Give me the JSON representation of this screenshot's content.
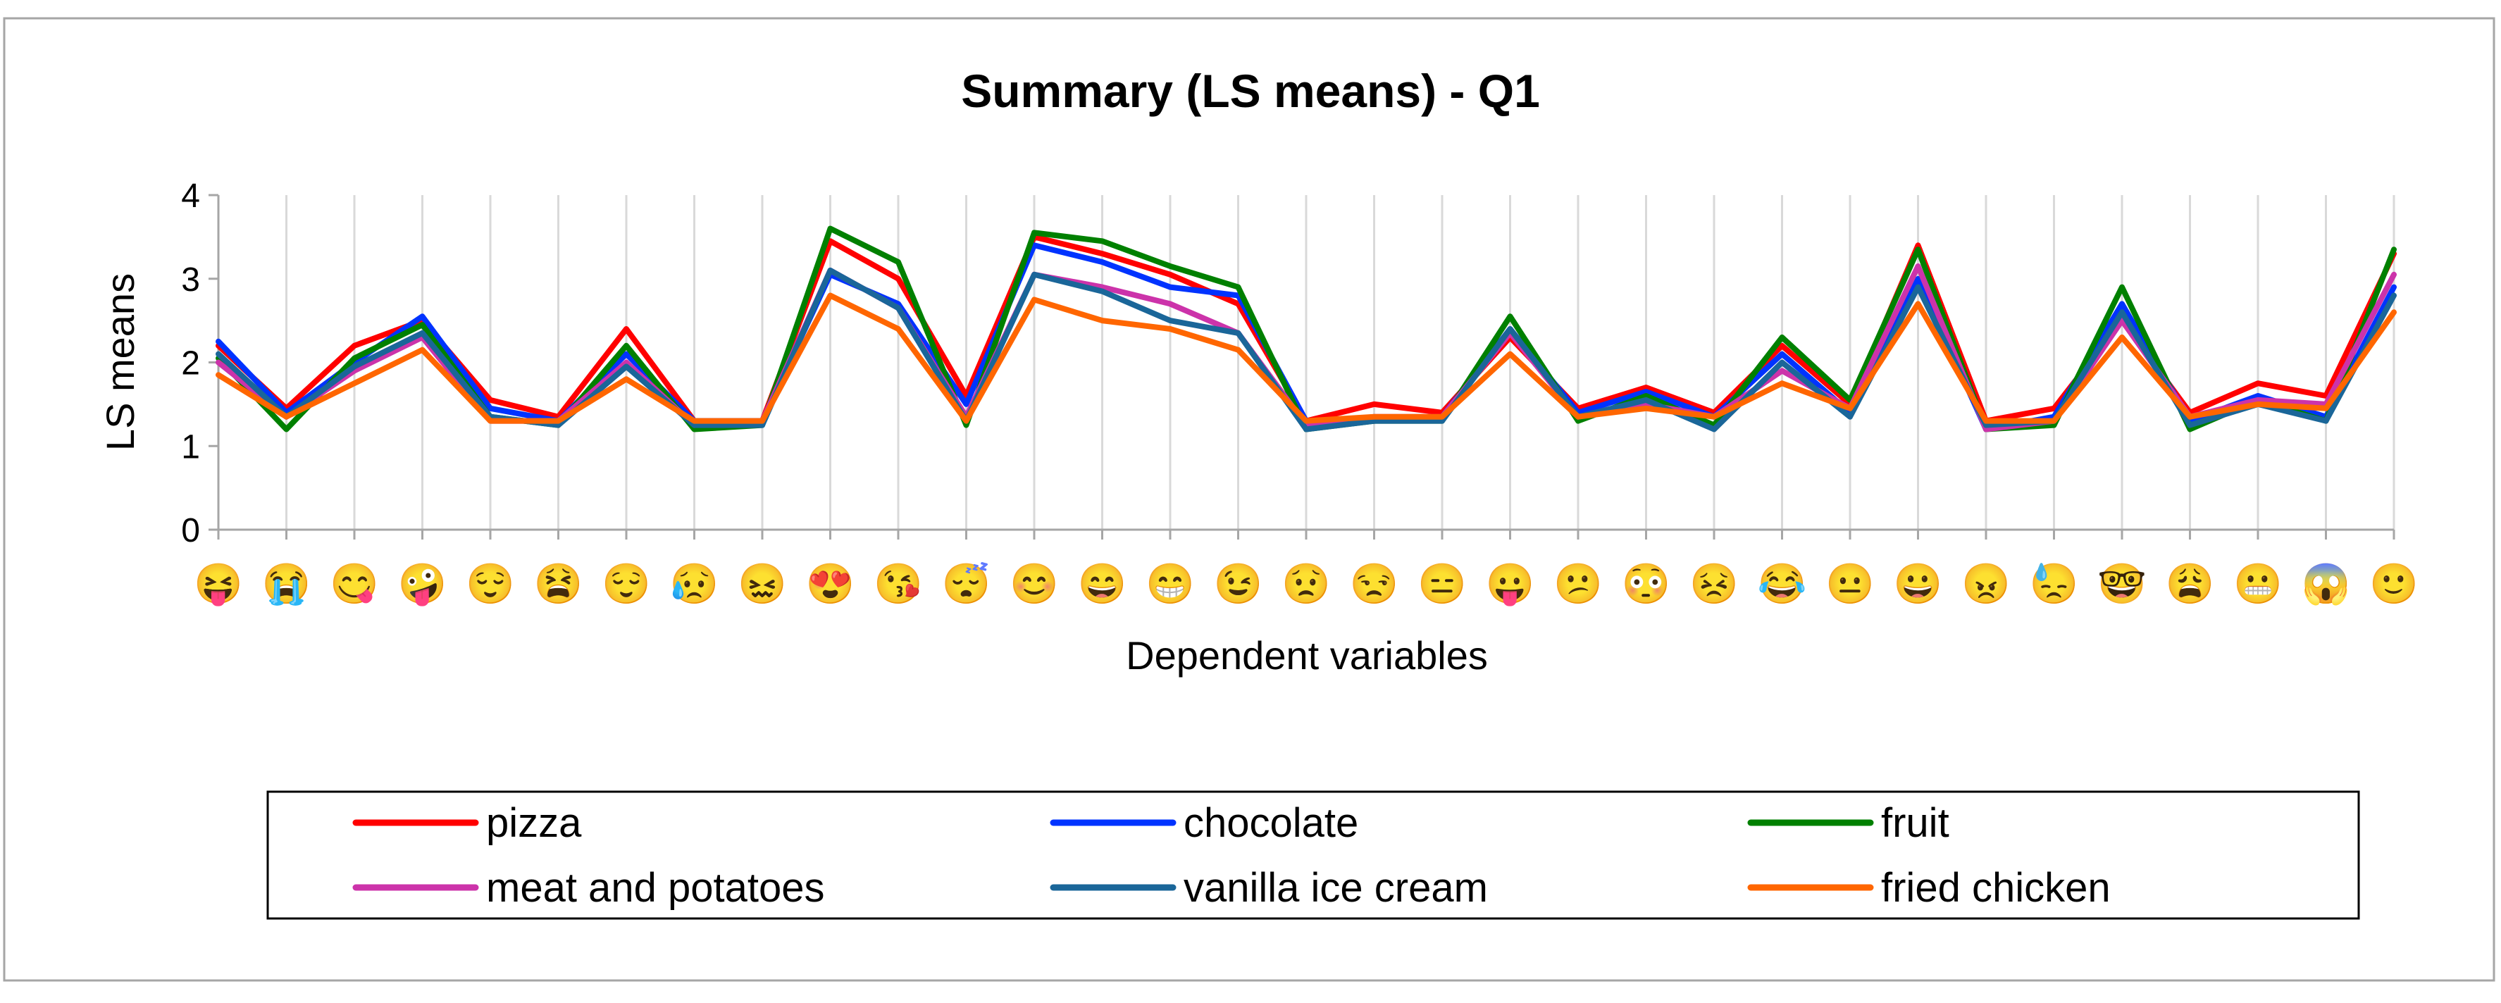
{
  "chart_data": {
    "type": "line",
    "title": "Summary (LS means) - Q1",
    "xlabel": "Dependent variables",
    "ylabel": "LS means",
    "ylim": [
      0,
      4
    ],
    "yticks": [
      "0",
      "1",
      "2",
      "3",
      "4"
    ],
    "grid": "vertical",
    "legend_position": "bottom",
    "categories": [
      "😝",
      "😭",
      "😋",
      "🤪",
      "😌",
      "😫",
      "😌",
      "😥",
      "😖",
      "😍",
      "😘",
      "😴",
      "😊",
      "😄",
      "😁",
      "😉",
      "😟",
      "😒",
      "😑",
      "😛",
      "😕",
      "😳",
      "😣",
      "😂",
      "😐",
      "😀",
      "😠",
      "😓",
      "🤓",
      "😩",
      "😬",
      "😱",
      "🙂"
    ],
    "series": [
      {
        "name": "pizza",
        "color": "#ff0000",
        "values": [
          2.2,
          1.45,
          2.2,
          2.5,
          1.55,
          1.35,
          2.4,
          1.3,
          1.3,
          3.45,
          3.0,
          1.6,
          3.5,
          3.3,
          3.05,
          2.7,
          1.3,
          1.5,
          1.4,
          2.3,
          1.45,
          1.7,
          1.4,
          2.2,
          1.5,
          3.4,
          1.3,
          1.45,
          2.5,
          1.4,
          1.75,
          1.6,
          3.3
        ]
      },
      {
        "name": "chocolate",
        "color": "#0033ff",
        "values": [
          2.25,
          1.4,
          2.0,
          2.55,
          1.45,
          1.3,
          2.1,
          1.3,
          1.3,
          3.05,
          2.7,
          1.5,
          3.4,
          3.2,
          2.9,
          2.8,
          1.3,
          1.3,
          1.35,
          2.4,
          1.4,
          1.65,
          1.35,
          2.1,
          1.4,
          3.0,
          1.2,
          1.35,
          2.7,
          1.3,
          1.6,
          1.35,
          2.9
        ]
      },
      {
        "name": "fruit",
        "color": "#008000",
        "values": [
          2.05,
          1.2,
          2.05,
          2.45,
          1.35,
          1.25,
          2.2,
          1.2,
          1.25,
          3.6,
          3.2,
          1.25,
          3.55,
          3.45,
          3.15,
          2.9,
          1.2,
          1.3,
          1.3,
          2.55,
          1.3,
          1.6,
          1.25,
          2.3,
          1.55,
          3.35,
          1.2,
          1.25,
          2.9,
          1.2,
          1.55,
          1.3,
          3.35
        ]
      },
      {
        "name": "meat and potatoes",
        "color": "#cc33aa",
        "values": [
          2.0,
          1.35,
          1.9,
          2.3,
          1.3,
          1.3,
          2.0,
          1.25,
          1.3,
          3.1,
          2.65,
          1.35,
          3.05,
          2.9,
          2.7,
          2.35,
          1.25,
          1.35,
          1.35,
          2.35,
          1.35,
          1.5,
          1.35,
          1.9,
          1.45,
          3.15,
          1.2,
          1.3,
          2.5,
          1.35,
          1.55,
          1.5,
          3.05
        ]
      },
      {
        "name": "vanilla ice cream",
        "color": "#1a6699",
        "values": [
          2.1,
          1.35,
          1.95,
          2.35,
          1.35,
          1.25,
          1.95,
          1.25,
          1.25,
          3.1,
          2.65,
          1.3,
          3.05,
          2.85,
          2.5,
          2.35,
          1.2,
          1.3,
          1.3,
          2.4,
          1.35,
          1.55,
          1.2,
          2.0,
          1.35,
          2.9,
          1.25,
          1.3,
          2.6,
          1.25,
          1.5,
          1.3,
          2.8
        ]
      },
      {
        "name": "fried chicken",
        "color": "#ff6600",
        "values": [
          1.85,
          1.35,
          1.75,
          2.15,
          1.3,
          1.3,
          1.8,
          1.3,
          1.3,
          2.8,
          2.4,
          1.3,
          2.75,
          2.5,
          2.4,
          2.15,
          1.3,
          1.35,
          1.35,
          2.1,
          1.35,
          1.45,
          1.35,
          1.75,
          1.45,
          2.7,
          1.3,
          1.3,
          2.3,
          1.35,
          1.5,
          1.45,
          2.6
        ]
      }
    ]
  }
}
